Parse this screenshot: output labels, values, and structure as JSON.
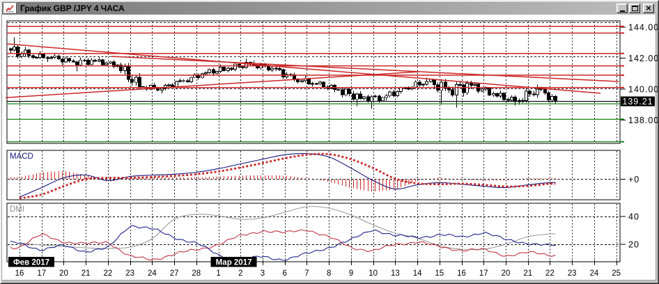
{
  "window": {
    "title": "График GBP /JPY 4 ЧАСА",
    "icon": "line-chart-icon",
    "controls": {
      "close_glyph": "×"
    }
  },
  "colors": {
    "up_candle": "#ffffff",
    "down_candle": "#000000",
    "resistance": "#cd2626",
    "support": "#168316",
    "trendline": "#cd2626",
    "macd_line": "#14147a",
    "macd_signal": "#cd2626",
    "macd_histogram": "#cd2626",
    "di_plus": "#c23444",
    "di_minus": "#20248e",
    "adx": "#9a9a9a",
    "grid": "#1c1c1c",
    "current_price_bg": "#000000",
    "current_price_fg": "#ffffff",
    "badge_bg": "#000000",
    "badge_fg": "#ffffff",
    "panel_bg": "#ffffff"
  },
  "price_axis": {
    "tick_labels": [
      "144.00",
      "142.00",
      "140.00",
      "138.00"
    ],
    "tick_values": [
      144,
      142,
      140,
      138
    ],
    "current_price_label": "139.21",
    "current_price": 139.21
  },
  "macd_panel": {
    "label": "MACD",
    "zero_label": "+0"
  },
  "dmi_panel": {
    "label": "DMI",
    "tick_labels": [
      "40",
      "20"
    ],
    "tick_values": [
      40,
      20
    ]
  },
  "time_axis": {
    "dates": [
      "16",
      "17",
      "20",
      "21",
      "22",
      "23",
      "24",
      "27",
      "28",
      "1",
      "2",
      "3",
      "6",
      "7",
      "8",
      "9",
      "10",
      "13",
      "14",
      "15",
      "16",
      "17",
      "20",
      "21",
      "22",
      "23",
      "24",
      "25"
    ],
    "month_badges": [
      {
        "label": "Фев 2017",
        "at_date_index": 0
      },
      {
        "label": "Мар 2017",
        "at_date_index": 9
      }
    ]
  },
  "chart_data": [
    {
      "type": "candlestick",
      "pair": "GBP/JPY",
      "interval": "4 часа",
      "current_price": 139.21,
      "daily_ohlc": [
        {
          "d": "16 Фев",
          "o": 142.6,
          "h": 143.35,
          "l": 141.95,
          "c": 142.15
        },
        {
          "d": "17 Фев",
          "o": 142.15,
          "h": 142.45,
          "l": 141.75,
          "c": 142.05
        },
        {
          "d": "20 Фев",
          "o": 142.05,
          "h": 142.3,
          "l": 141.55,
          "c": 141.75
        },
        {
          "d": "21 Фев",
          "o": 141.75,
          "h": 142.05,
          "l": 141.15,
          "c": 141.8
        },
        {
          "d": "22 Фев",
          "o": 141.8,
          "h": 142.05,
          "l": 141.35,
          "c": 141.55
        },
        {
          "d": "23 Фев",
          "o": 141.55,
          "h": 141.7,
          "l": 139.95,
          "c": 140.15
        },
        {
          "d": "24 Фев",
          "o": 140.15,
          "h": 140.4,
          "l": 139.7,
          "c": 140.05
        },
        {
          "d": "27 Фев",
          "o": 140.05,
          "h": 140.7,
          "l": 139.9,
          "c": 140.55
        },
        {
          "d": "28 Фев",
          "o": 140.55,
          "h": 141.15,
          "l": 140.4,
          "c": 141.05
        },
        {
          "d": "1 Мар",
          "o": 141.05,
          "h": 141.6,
          "l": 140.85,
          "c": 141.35
        },
        {
          "d": "2 Мар",
          "o": 141.35,
          "h": 141.95,
          "l": 141.15,
          "c": 141.6
        },
        {
          "d": "3 Мар",
          "o": 141.6,
          "h": 141.85,
          "l": 141.1,
          "c": 141.35
        },
        {
          "d": "6 Мар",
          "o": 141.35,
          "h": 141.5,
          "l": 140.5,
          "c": 140.65
        },
        {
          "d": "7 Мар",
          "o": 140.65,
          "h": 140.9,
          "l": 140.15,
          "c": 140.35
        },
        {
          "d": "8 Мар",
          "o": 140.35,
          "h": 140.55,
          "l": 139.8,
          "c": 139.95
        },
        {
          "d": "9 Мар",
          "o": 139.95,
          "h": 140.1,
          "l": 138.9,
          "c": 139.4
        },
        {
          "d": "10 Мар",
          "o": 139.4,
          "h": 139.65,
          "l": 138.75,
          "c": 139.45
        },
        {
          "d": "13 Мар",
          "o": 139.45,
          "h": 140.15,
          "l": 139.25,
          "c": 140.05
        },
        {
          "d": "14 Мар",
          "o": 140.05,
          "h": 140.75,
          "l": 139.9,
          "c": 140.5
        },
        {
          "d": "15 Мар",
          "o": 140.5,
          "h": 140.65,
          "l": 139.0,
          "c": 139.95
        },
        {
          "d": "16 Мар",
          "o": 139.95,
          "h": 140.55,
          "l": 138.8,
          "c": 140.25
        },
        {
          "d": "17 Мар",
          "o": 140.25,
          "h": 140.45,
          "l": 139.5,
          "c": 139.7
        },
        {
          "d": "20 Мар",
          "o": 139.7,
          "h": 139.9,
          "l": 138.95,
          "c": 139.2
        },
        {
          "d": "21 Мар",
          "o": 139.2,
          "h": 140.3,
          "l": 139.0,
          "c": 140.0
        },
        {
          "d": "22 Мар",
          "o": 140.0,
          "h": 140.15,
          "l": 139.05,
          "c": 139.21
        }
      ],
      "levels": {
        "resistance_red": [
          144.05,
          143.62,
          142.3,
          141.5,
          140.9,
          140.1
        ],
        "support_green": [
          139.05,
          138.05,
          136.6
        ]
      },
      "trendlines": [
        {
          "name": "descending-upper",
          "from_day": -0.57,
          "from_price": 142.92,
          "to_day": 26.29,
          "to_price": 139.73
        },
        {
          "name": "descending-lower",
          "from_day": 4.16,
          "from_price": 142.11,
          "to_day": 27.11,
          "to_price": 140.49
        },
        {
          "name": "ascending-triangle",
          "from_day": -0.63,
          "from_price": 139.45,
          "to_day": 18.03,
          "to_price": 141.12
        }
      ]
    },
    {
      "type": "line",
      "title": "MACD",
      "zero_line": 0,
      "ylim": [
        -0.9,
        1.0
      ],
      "aligned_to": "daily_ohlc dates",
      "series": [
        {
          "name": "MACD",
          "color": "#14147a",
          "values": [
            -0.64,
            -0.3,
            0.05,
            0.15,
            -0.05,
            0.1,
            0.15,
            0.18,
            0.25,
            0.38,
            0.55,
            0.72,
            0.88,
            0.92,
            0.8,
            0.4,
            -0.05,
            -0.35,
            -0.2,
            -0.12,
            -0.18,
            -0.25,
            -0.3,
            -0.2,
            -0.12
          ]
        },
        {
          "name": "Signal",
          "color": "#cd2626",
          "style": "dotted",
          "values": [
            -0.72,
            -0.55,
            -0.25,
            0.0,
            0.05,
            0.05,
            0.08,
            0.12,
            0.18,
            0.28,
            0.42,
            0.58,
            0.75,
            0.88,
            0.9,
            0.72,
            0.4,
            0.02,
            -0.15,
            -0.18,
            -0.16,
            -0.2,
            -0.26,
            -0.24,
            -0.16
          ]
        },
        {
          "name": "Histogram",
          "derived": "MACD - Signal"
        }
      ]
    },
    {
      "type": "line",
      "title": "DMI",
      "gridlines": [
        40,
        20
      ],
      "ylim": [
        7,
        49
      ],
      "aligned_to": "daily_ohlc dates",
      "series": [
        {
          "name": "+DI",
          "color": "#c23444",
          "values": [
            18,
            27,
            22,
            20,
            22,
            11,
            9,
            13,
            16,
            20,
            26,
            30,
            28,
            31,
            25,
            18,
            15,
            20,
            22,
            18,
            16,
            16,
            12,
            14,
            12.5
          ]
        },
        {
          "name": "-DI",
          "color": "#20248e",
          "values": [
            21,
            16,
            19,
            15,
            17,
            34,
            31,
            25,
            21,
            12,
            9,
            11,
            9,
            13,
            18,
            23,
            31,
            26,
            25,
            27,
            25,
            29,
            23,
            21,
            19
          ]
        },
        {
          "name": "ADX",
          "color": "#9a9a9a",
          "values": [
            21,
            19.5,
            18.5,
            17.5,
            17,
            18,
            24,
            38,
            41.5,
            40.5,
            38,
            39,
            43,
            47,
            46,
            41,
            34,
            28,
            24.5,
            19,
            16.5,
            16.5,
            20,
            25.5,
            27.5
          ]
        }
      ]
    }
  ]
}
